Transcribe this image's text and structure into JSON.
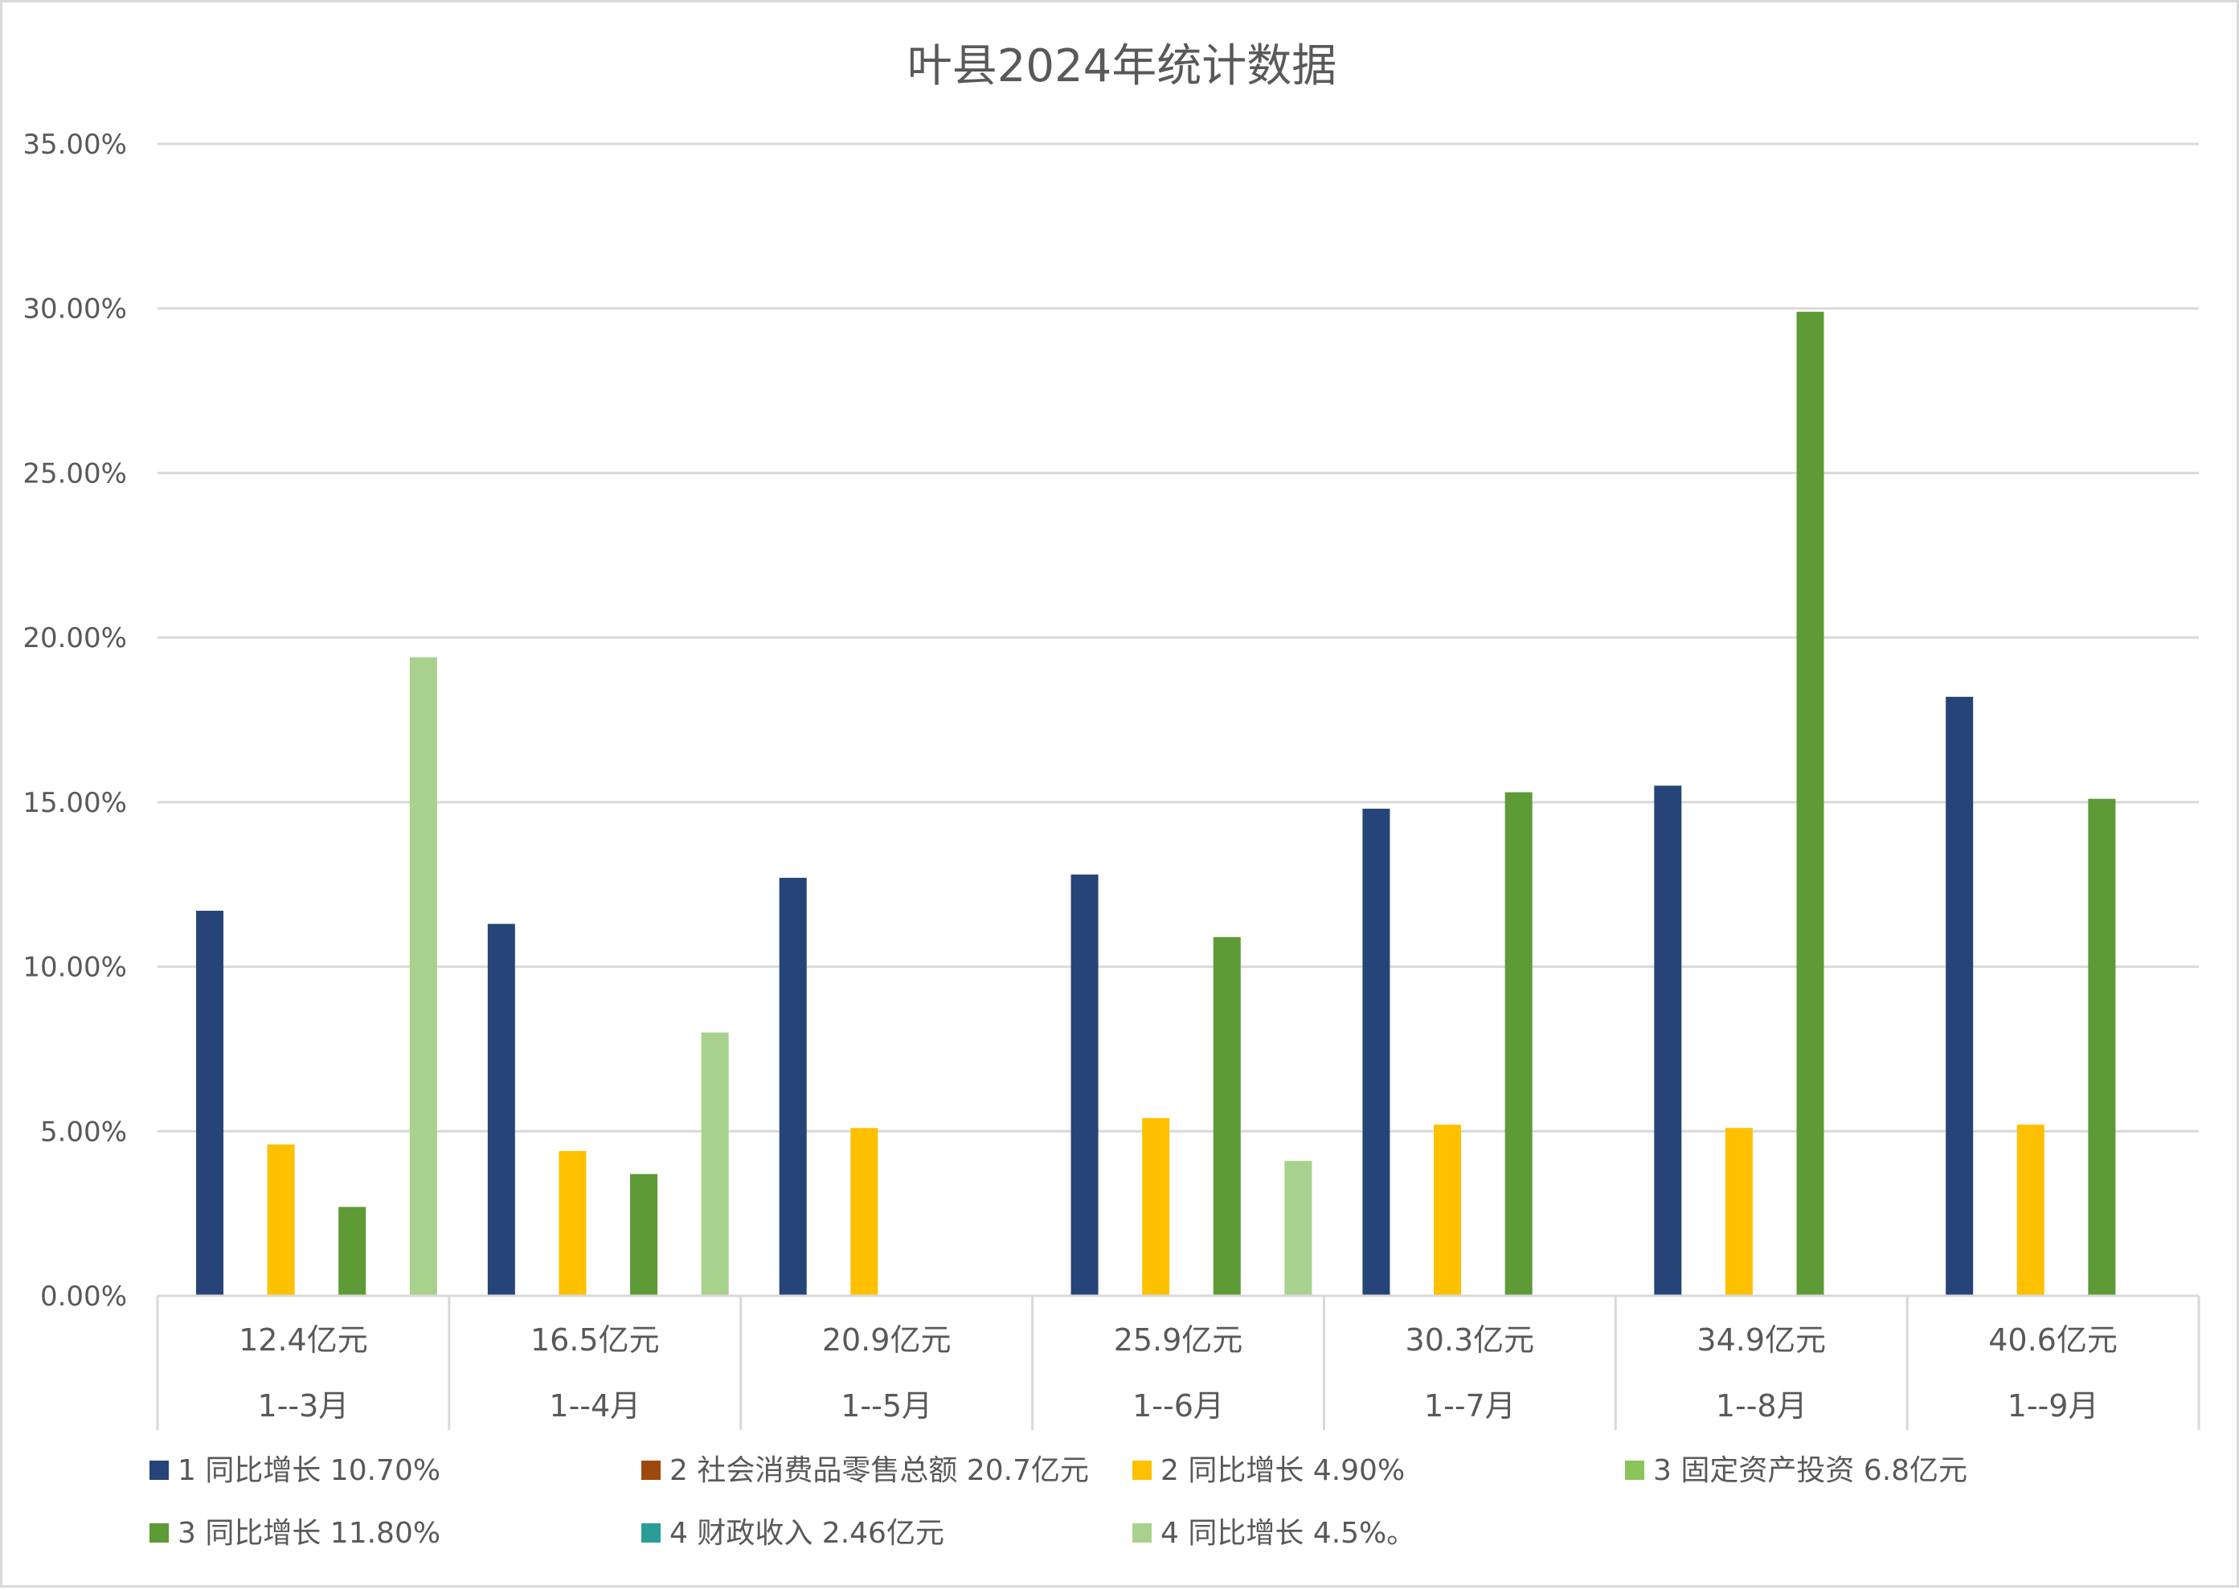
{
  "chart_data": {
    "type": "bar",
    "title": "叶县2024年统计数据",
    "xlabel": "",
    "ylabel": "",
    "ylim": [
      0,
      35
    ],
    "yticks": [
      0,
      5,
      10,
      15,
      20,
      25,
      30,
      35
    ],
    "ytick_labels": [
      "0.00%",
      "5.00%",
      "10.00%",
      "15.00%",
      "20.00%",
      "25.00%",
      "30.00%",
      "35.00%"
    ],
    "grid": true,
    "legend_position": "bottom",
    "categories": [
      "1--3月",
      "1--4月",
      "1--5月",
      "1--6月",
      "1--7月",
      "1--8月",
      "1--9月"
    ],
    "category_sublabels": [
      "12.4亿元",
      "16.5亿元",
      "20.9亿元",
      "25.9亿元",
      "30.3亿元",
      "34.9亿元",
      "40.6亿元"
    ],
    "series": [
      {
        "name": "1 同比增长 10.70%",
        "color": "#264478",
        "values": [
          11.7,
          11.3,
          12.7,
          12.8,
          14.8,
          15.5,
          18.2
        ]
      },
      {
        "name": "2 社会消费品零售总额 20.7亿元",
        "color": "#9e480e",
        "values": [
          null,
          null,
          null,
          null,
          null,
          null,
          null
        ]
      },
      {
        "name": "2 同比增长 4.90%",
        "color": "#ffc000",
        "values": [
          4.6,
          4.4,
          5.1,
          5.4,
          5.2,
          5.1,
          5.2
        ]
      },
      {
        "name": "3 固定资产投资 6.8亿元",
        "color": "#8ac45a",
        "values": [
          null,
          null,
          null,
          null,
          null,
          null,
          null
        ]
      },
      {
        "name": "3 同比增长 11.80%",
        "color": "#5e9a36",
        "values": [
          2.7,
          3.7,
          null,
          10.9,
          15.3,
          29.9,
          15.1
        ]
      },
      {
        "name": "4 财政收入 2.46亿元",
        "color": "#2a9d98",
        "values": [
          null,
          null,
          null,
          null,
          null,
          null,
          null
        ]
      },
      {
        "name": "4 同比增长 4.5%。",
        "color": "#a9d18e",
        "values": [
          19.4,
          8.0,
          null,
          4.1,
          null,
          null,
          null
        ]
      }
    ],
    "gridline_color": "#d9d9d9",
    "text_color": "#595959"
  }
}
